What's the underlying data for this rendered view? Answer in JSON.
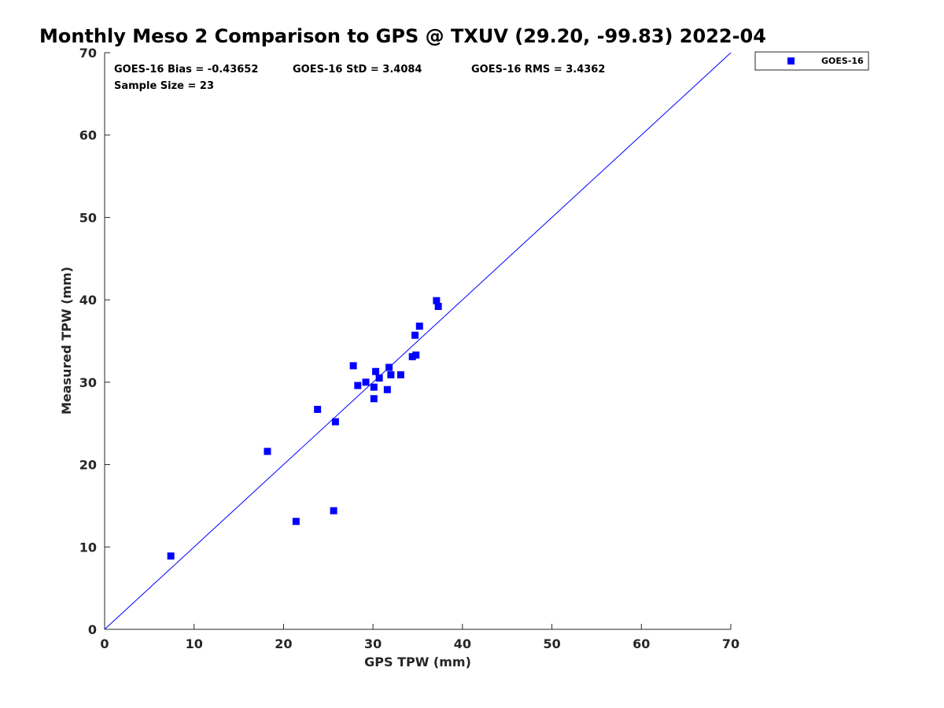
{
  "chart_data": {
    "type": "scatter",
    "title": "Monthly Meso 2 Comparison to GPS @ TXUV (29.20, -99.83) 2022-04",
    "xlabel": "GPS TPW (mm)",
    "ylabel": "Measured TPW (mm)",
    "xlim": [
      0,
      70
    ],
    "ylim": [
      0,
      70
    ],
    "xticks": [
      0,
      10,
      20,
      30,
      40,
      50,
      60,
      70
    ],
    "yticks": [
      0,
      10,
      20,
      30,
      40,
      50,
      60,
      70
    ],
    "grid": false,
    "legend_position": "top-right, outside plot",
    "series": [
      {
        "name": "GOES-16",
        "color": "#0000ff",
        "marker": "square",
        "points": [
          [
            7.4,
            8.9
          ],
          [
            18.2,
            21.6
          ],
          [
            21.4,
            13.1
          ],
          [
            23.8,
            26.7
          ],
          [
            25.6,
            14.4
          ],
          [
            25.8,
            25.2
          ],
          [
            27.8,
            32.0
          ],
          [
            28.3,
            29.6
          ],
          [
            29.2,
            30.0
          ],
          [
            30.1,
            28.0
          ],
          [
            30.1,
            29.4
          ],
          [
            30.3,
            31.3
          ],
          [
            30.7,
            30.5
          ],
          [
            31.6,
            29.1
          ],
          [
            31.8,
            31.8
          ],
          [
            32.0,
            30.9
          ],
          [
            33.1,
            30.9
          ],
          [
            34.4,
            33.1
          ],
          [
            34.8,
            33.3
          ],
          [
            34.7,
            35.7
          ],
          [
            35.2,
            36.8
          ],
          [
            37.1,
            39.9
          ],
          [
            37.3,
            39.2
          ]
        ]
      }
    ],
    "reference_line": {
      "type": "one-to-one",
      "color": "#0000ff",
      "from": [
        0,
        0
      ],
      "to": [
        70,
        70
      ]
    },
    "annotations": {
      "bias": "GOES-16 Bias = -0.43652",
      "std": "GOES-16 StD = 3.4084",
      "rms": "GOES-16 RMS = 3.4362",
      "sample_size": "Sample Size = 23"
    }
  }
}
